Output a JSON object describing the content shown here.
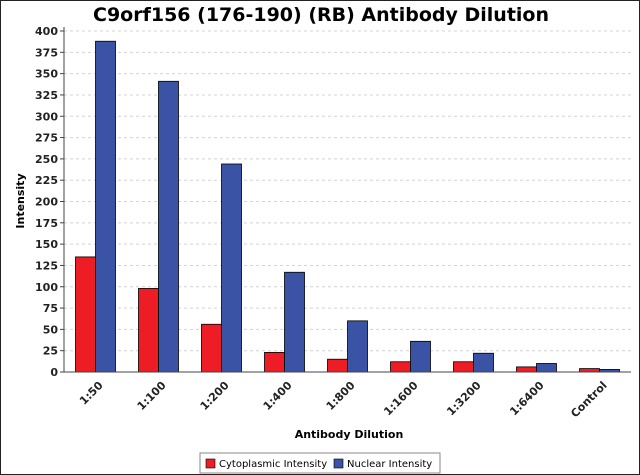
{
  "chart_data": {
    "type": "bar",
    "title": "C9orf156 (176-190) (RB) Antibody Dilution",
    "xlabel": "Antibody Dilution",
    "ylabel": "Intensity",
    "ylim": [
      0,
      400
    ],
    "yticks": [
      0,
      25,
      50,
      75,
      100,
      125,
      150,
      175,
      200,
      225,
      250,
      275,
      300,
      325,
      350,
      375,
      400
    ],
    "grid": true,
    "legend_position": "bottom",
    "categories": [
      "1:50",
      "1:100",
      "1:200",
      "1:400",
      "1:800",
      "1:1600",
      "1:3200",
      "1:6400",
      "Control"
    ],
    "series": [
      {
        "name": "Cytoplasmic Intensity",
        "color": "#ee1c24",
        "values": [
          135,
          98,
          56,
          23,
          15,
          12,
          12,
          6,
          4
        ]
      },
      {
        "name": "Nuclear Intensity",
        "color": "#3a53a4",
        "values": [
          388,
          341,
          244,
          117,
          60,
          36,
          22,
          10,
          3
        ]
      }
    ]
  }
}
